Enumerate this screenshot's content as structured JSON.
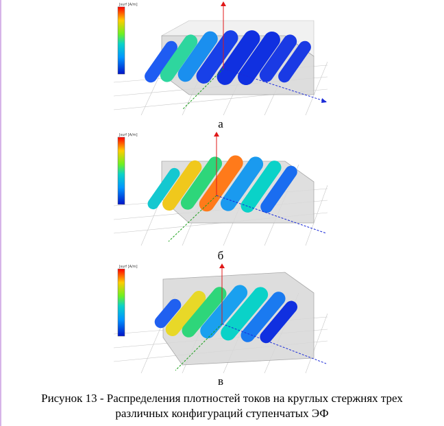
{
  "figure": {
    "panels": [
      {
        "label": "а",
        "legend_title": "Jsurf [A/m]",
        "legend_rows": 15
      },
      {
        "label": "б",
        "legend_title": "Jsurf [A/m]",
        "legend_rows": 15
      },
      {
        "label": "в",
        "legend_title": "Jsurf [A/m]",
        "legend_rows": 15
      }
    ],
    "caption_line1": "Рисунок 13 - Распределения плотностей токов на круглых стержнях трех",
    "caption_line2": "различных конфигураций ступенчатых ЭФ",
    "colors": {
      "scale": [
        "#ff0000",
        "#ff5a00",
        "#ff9a00",
        "#ffcc00",
        "#e6ee00",
        "#b4ff00",
        "#6ef020",
        "#2ee05a",
        "#14d28c",
        "#0ad2c8",
        "#00b4f0",
        "#0096ff",
        "#0064f5",
        "#0032e6",
        "#0014c8"
      ],
      "axis_red": "#e01818",
      "axis_blue": "#1a2ad8",
      "axis_green": "#18a018",
      "housing": "#c9c9c9",
      "grid": "#bdbdbd"
    }
  }
}
